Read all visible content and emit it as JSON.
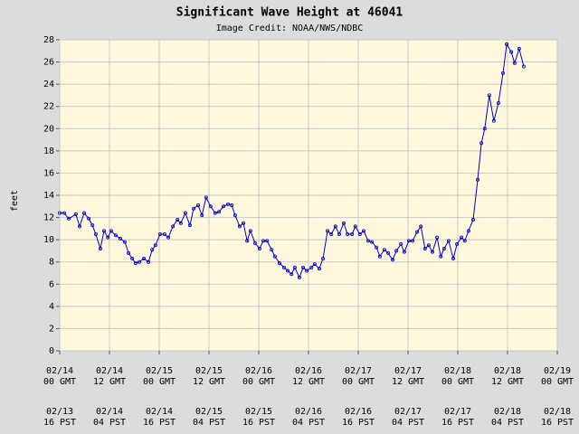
{
  "chart_data": {
    "type": "line",
    "title": "Significant Wave Height at 46041",
    "subtitle": "Image Credit: NOAA/NWS/NDBC",
    "ylabel": "feet",
    "color": "#0000cc",
    "grid": true,
    "xlim": [
      0,
      120
    ],
    "ylim": [
      0,
      28
    ],
    "yticks": [
      0,
      2,
      4,
      6,
      8,
      10,
      12,
      14,
      16,
      18,
      20,
      22,
      24,
      26,
      28
    ],
    "xticks": [
      {
        "value": 0,
        "label": "02/14\n00 GMT"
      },
      {
        "value": 12,
        "label": "02/14\n12 GMT"
      },
      {
        "value": 24,
        "label": "02/15\n00 GMT"
      },
      {
        "value": 36,
        "label": "02/15\n12 GMT"
      },
      {
        "value": 48,
        "label": "02/16\n00 GMT"
      },
      {
        "value": 60,
        "label": "02/16\n12 GMT"
      },
      {
        "value": 72,
        "label": "02/17\n00 GMT"
      },
      {
        "value": 84,
        "label": "02/17\n12 GMT"
      },
      {
        "value": 96,
        "label": "02/18\n00 GMT"
      },
      {
        "value": 108,
        "label": "02/18\n12 GMT"
      },
      {
        "value": 120,
        "label": "02/19\n00 GMT"
      }
    ],
    "xticks_local": [
      {
        "value": 0,
        "label": "02/13\n16 PST"
      },
      {
        "value": 12,
        "label": "02/14\n04 PST"
      },
      {
        "value": 24,
        "label": "02/14\n16 PST"
      },
      {
        "value": 36,
        "label": "02/15\n04 PST"
      },
      {
        "value": 48,
        "label": "02/15\n16 PST"
      },
      {
        "value": 60,
        "label": "02/16\n04 PST"
      },
      {
        "value": 72,
        "label": "02/16\n16 PST"
      },
      {
        "value": 84,
        "label": "02/17\n04 PST"
      },
      {
        "value": 96,
        "label": "02/17\n16 PST"
      },
      {
        "value": 108,
        "label": "02/18\n04 PST"
      },
      {
        "value": 120,
        "label": "02/18\n16 PST"
      }
    ],
    "x": [
      0,
      1.1,
      2.2,
      3.9,
      4.8,
      5.9,
      7.0,
      7.9,
      8.7,
      9.8,
      10.7,
      11.6,
      12.4,
      13.5,
      14.6,
      15.7,
      16.6,
      17.5,
      18.3,
      19.2,
      20.3,
      21.4,
      22.3,
      23.1,
      24.2,
      25.3,
      26.2,
      27.3,
      28.4,
      29.2,
      30.3,
      31.4,
      32.3,
      33.4,
      34.3,
      35.3,
      36.4,
      37.5,
      38.4,
      39.5,
      40.6,
      41.5,
      42.3,
      43.4,
      44.3,
      45.2,
      46.0,
      47.1,
      48.2,
      49.1,
      50.0,
      51.1,
      51.9,
      53.0,
      54.1,
      55.0,
      55.9,
      56.7,
      57.8,
      58.7,
      59.6,
      60.7,
      61.5,
      62.6,
      63.5,
      64.6,
      65.5,
      66.5,
      67.4,
      68.5,
      69.4,
      70.5,
      71.3,
      72.4,
      73.3,
      74.4,
      75.3,
      76.4,
      77.2,
      78.3,
      79.2,
      80.3,
      81.2,
      82.3,
      83.1,
      84.2,
      85.1,
      86.2,
      87.1,
      88.1,
      89.0,
      89.9,
      91.0,
      91.9,
      92.7,
      93.8,
      94.9,
      95.8,
      96.9,
      97.7,
      98.6,
      99.7,
      100.8,
      101.7,
      102.5,
      103.6,
      104.7,
      105.8,
      106.9,
      107.8,
      108.9,
      109.7,
      110.8,
      111.9
    ],
    "values": [
      12.4,
      12.4,
      11.9,
      12.3,
      11.2,
      12.4,
      11.9,
      11.3,
      10.5,
      9.2,
      10.8,
      10.2,
      10.8,
      10.4,
      10.1,
      9.8,
      8.8,
      8.3,
      7.9,
      8.0,
      8.3,
      8.0,
      9.1,
      9.5,
      10.5,
      10.5,
      10.2,
      11.2,
      11.8,
      11.5,
      12.4,
      11.3,
      12.8,
      13.1,
      12.2,
      13.8,
      13.0,
      12.4,
      12.5,
      13.0,
      13.2,
      13.1,
      12.2,
      11.2,
      11.5,
      9.9,
      10.8,
      9.7,
      9.2,
      9.9,
      9.9,
      9.1,
      8.5,
      7.9,
      7.5,
      7.2,
      6.9,
      7.5,
      6.6,
      7.5,
      7.2,
      7.5,
      7.8,
      7.4,
      8.3,
      10.8,
      10.5,
      11.2,
      10.5,
      11.5,
      10.5,
      10.5,
      11.2,
      10.5,
      10.8,
      9.9,
      9.8,
      9.3,
      8.5,
      9.1,
      8.8,
      8.2,
      9.0,
      9.6,
      8.9,
      9.9,
      9.9,
      10.7,
      11.2,
      9.2,
      9.5,
      8.9,
      10.2,
      8.5,
      9.2,
      9.9,
      8.3,
      9.6,
      10.2,
      9.9,
      10.8,
      11.8,
      15.4,
      18.7,
      20.0,
      23.0,
      20.7,
      22.3,
      25.0,
      27.6,
      26.9,
      25.9,
      27.2,
      25.6
    ]
  }
}
